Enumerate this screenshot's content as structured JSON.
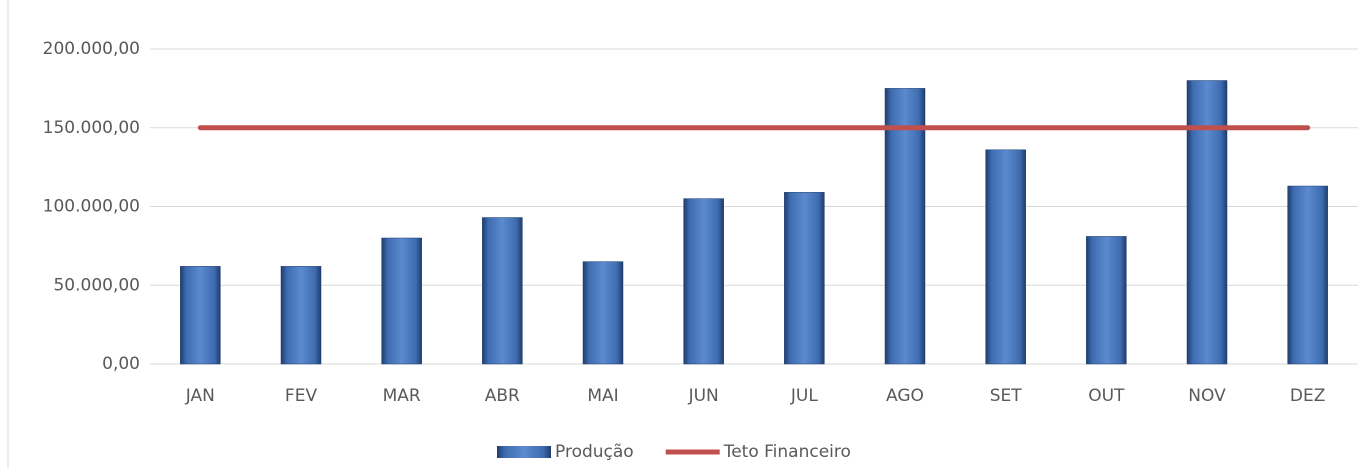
{
  "chart_data": {
    "type": "bar",
    "categories": [
      "JAN",
      "FEV",
      "MAR",
      "ABR",
      "MAI",
      "JUN",
      "JUL",
      "AGO",
      "SET",
      "OUT",
      "NOV",
      "DEZ"
    ],
    "series": [
      {
        "name": "Produção",
        "type": "bar",
        "color": "#4a78bc",
        "values": [
          62000,
          62000,
          80000,
          93000,
          65000,
          105000,
          109000,
          175000,
          136000,
          81000,
          180000,
          113000
        ]
      },
      {
        "name": "Teto Financeiro",
        "type": "line",
        "color": "#c0504d",
        "values": [
          150000,
          150000,
          150000,
          150000,
          150000,
          150000,
          150000,
          150000,
          150000,
          150000,
          150000,
          150000
        ]
      }
    ],
    "ylim": [
      0,
      200000
    ],
    "yticks": [
      {
        "value": 0,
        "label": "0,00"
      },
      {
        "value": 50000,
        "label": "50.000,00"
      },
      {
        "value": 100000,
        "label": "100.000,00"
      },
      {
        "value": 150000,
        "label": "150.000,00"
      },
      {
        "value": 200000,
        "label": "200.000,00"
      }
    ],
    "grid": true,
    "legend": "bottom"
  }
}
